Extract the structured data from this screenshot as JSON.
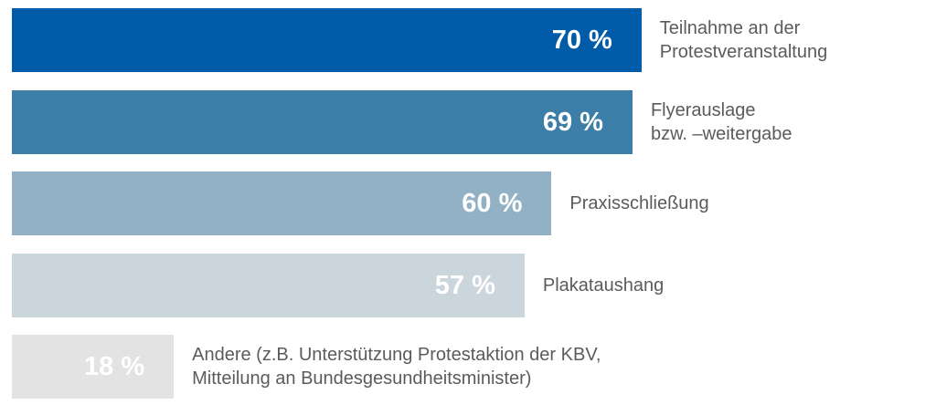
{
  "chart_data": {
    "type": "bar",
    "orientation": "horizontal",
    "unit": "%",
    "categories": [
      "Teilnahme an der\nProtestveranstaltung",
      "Flyerauslage\nbzw. –weitergabe",
      "Praxisschließung",
      "Plakataushang",
      "Andere (z.B. Unterstützung Protestaktion der KBV,\nMitteilung an Bundesgesundheitsminister)"
    ],
    "values": [
      70,
      69,
      60,
      57,
      18
    ],
    "value_labels": [
      "70 %",
      "69 %",
      "60 %",
      "57 %",
      "18 %"
    ],
    "colors": [
      "#005ca9",
      "#3d7ea8",
      "#93b1c5",
      "#cbd5dc",
      "#e3e3e3"
    ],
    "xlim": [
      0,
      100
    ],
    "grid": false,
    "axes_visible": false
  }
}
